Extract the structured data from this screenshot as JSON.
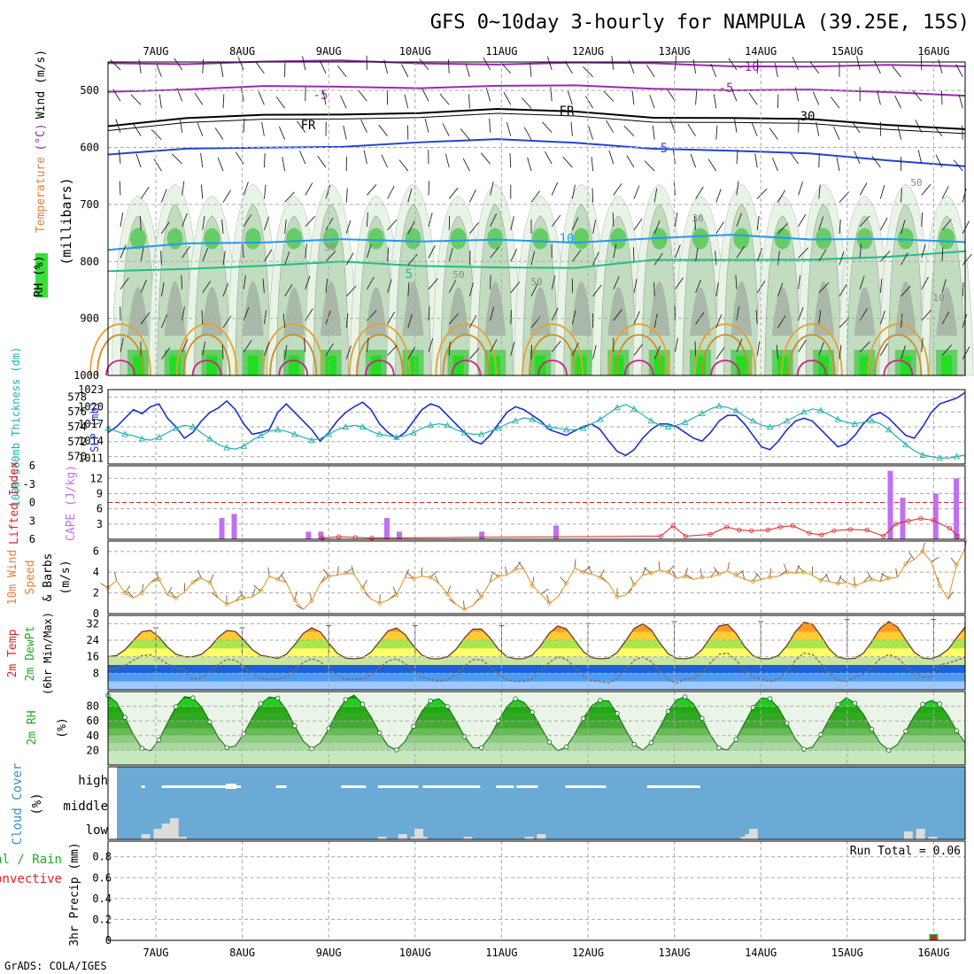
{
  "title": "GFS 0~10day 3-hourly for NAMPULA (39.25E, 15S)",
  "footer": "GrADS: COLA/IGES",
  "dates": [
    "7AUG",
    "8AUG",
    "9AUG",
    "10AUG",
    "11AUG",
    "12AUG",
    "13AUG",
    "14AUG",
    "15AUG",
    "16AUG"
  ],
  "colors": {
    "rh_light": "#e8f4e6",
    "rh_mid": "#c2dcc0",
    "rh_grey": "#a9b8a8",
    "rh_green": "#66cc66",
    "rh_bright": "#22dd22",
    "slp": "#1c30c8",
    "thickness": "#22b0b0",
    "cape": "#c070f0",
    "lifted": "#dd2222",
    "wind": "#e09a30",
    "barb": "#7a5a3a",
    "cloud_bg": "#6aaad4",
    "cloud_bar": "#dcdcdc",
    "precip_total": "#22aa22",
    "precip_conv": "#dd2222"
  },
  "chart_data": [
    {
      "type": "area",
      "panel": "upper-air",
      "ylabel_parts": [
        "RH (%)",
        "Temperature",
        "(°C)",
        "Wind (m/s)"
      ],
      "y_axis_label": "(millibars)",
      "yticks": [
        500,
        600,
        700,
        800,
        900,
        1000
      ],
      "ylim": [
        1000,
        450
      ],
      "contour_labels": [
        "-10",
        "-5",
        "-5",
        "FR",
        "FR",
        "5",
        "10",
        "5",
        "30",
        "30",
        "30",
        "50",
        "50",
        "50",
        "10"
      ],
      "isotherms": [
        {
          "label": "-10",
          "color": "#9a2ab0",
          "p": [
            452,
            451,
            450,
            450,
            451,
            452,
            453,
            454,
            455,
            457,
            458,
            458
          ]
        },
        {
          "label": "-5",
          "color": "#9a2ab0",
          "p": [
            500,
            497,
            495,
            494,
            493,
            492,
            494,
            496,
            497,
            500,
            505,
            507
          ]
        },
        {
          "label": "FR",
          "color": "#000000",
          "p": [
            560,
            550,
            545,
            540,
            538,
            535,
            538,
            545,
            548,
            553,
            560,
            565
          ]
        },
        {
          "label": "5",
          "color": "#2244cc",
          "p": [
            612,
            605,
            600,
            596,
            592,
            588,
            590,
            600,
            608,
            612,
            620,
            632
          ]
        },
        {
          "label": "10",
          "color": "#2299ee",
          "p": [
            782,
            770,
            764,
            760,
            768,
            762,
            764,
            760,
            756,
            760,
            758,
            768
          ]
        },
        {
          "label": "5",
          "color": "#22bb88",
          "p": [
            820,
            812,
            805,
            802,
            810,
            808,
            810,
            800,
            798,
            794,
            792,
            785
          ]
        }
      ]
    },
    {
      "type": "line",
      "panel": "slp-thickness",
      "ylabel_left": "1000-500mb Thickness (dm)",
      "ylabel_right": "SLP (mb)",
      "left_ticks": [
        570,
        572,
        574,
        576,
        578
      ],
      "right_ticks": [
        1011,
        1014,
        1017,
        1020,
        1023
      ],
      "series": [
        {
          "name": "SLP (mb)",
          "color": "#1c30c8",
          "values": [
            1015.5,
            1016.5,
            1018.0,
            1019.5,
            1018.8,
            1020.0,
            1020.5,
            1018.0,
            1016.5,
            1014.5,
            1015.5,
            1017.5,
            1019.0,
            1019.8,
            1021.0,
            1019.5,
            1017.0,
            1015.2,
            1015.5,
            1016.0,
            1019.0,
            1020.5,
            1019.0,
            1017.5,
            1016.0,
            1014.0,
            1015.5,
            1017.5,
            1019.0,
            1020.0,
            1020.8,
            1019.5,
            1017.0,
            1015.5,
            1014.5,
            1015.5,
            1017.5,
            1019.5,
            1020.5,
            1020.0,
            1018.5,
            1017.0,
            1015.5,
            1014.0,
            1013.5,
            1015.0,
            1017.0,
            1019.0,
            1020.0,
            1019.5,
            1018.5,
            1017.5,
            1016.0,
            1015.5,
            1015.0,
            1015.8,
            1016.5,
            1017.0,
            1016.0,
            1014.0,
            1012.2,
            1011.5,
            1012.5,
            1014.5,
            1016.0,
            1017.0,
            1017.0,
            1016.5,
            1015.5,
            1014.5,
            1014.0,
            1015.5,
            1017.5,
            1018.5,
            1018.5,
            1017.0,
            1015.0,
            1013.0,
            1012.5,
            1014.0,
            1016.0,
            1017.5,
            1018.0,
            1017.5,
            1016.0,
            1014.5,
            1013.0,
            1013.5,
            1015.0,
            1017.0,
            1018.5,
            1019.0,
            1018.0,
            1016.5,
            1015.0,
            1014.5,
            1016.5,
            1019.0,
            1020.5,
            1021.0,
            1021.5,
            1022.5
          ]
        },
        {
          "name": "1000-500mb Thickness (dm)",
          "color": "#22b0b0",
          "values": [
            573.8,
            573.4,
            573.0,
            572.8,
            572.4,
            572.2,
            572.6,
            573.2,
            573.8,
            574.2,
            574.0,
            573.2,
            572.4,
            571.6,
            571.2,
            571.0,
            571.4,
            572.2,
            572.8,
            573.4,
            573.6,
            573.4,
            573.0,
            572.6,
            572.2,
            572.4,
            573.0,
            573.6,
            574.0,
            574.2,
            574.0,
            573.4,
            573.0,
            572.8,
            572.6,
            572.8,
            573.2,
            573.8,
            574.2,
            574.4,
            574.2,
            573.6,
            573.2,
            573.0,
            573.0,
            573.4,
            573.8,
            574.4,
            574.8,
            575.2,
            575.0,
            574.4,
            574.0,
            573.8,
            573.6,
            573.6,
            573.8,
            574.4,
            575.0,
            575.8,
            576.6,
            577.0,
            576.4,
            575.6,
            574.8,
            574.2,
            574.0,
            574.2,
            574.6,
            575.2,
            575.8,
            576.4,
            576.8,
            576.6,
            576.2,
            575.4,
            574.8,
            574.2,
            574.0,
            574.2,
            574.8,
            575.4,
            576.0,
            576.4,
            576.2,
            575.6,
            575.0,
            574.6,
            574.4,
            574.6,
            574.8,
            574.4,
            573.6,
            572.6,
            571.6,
            570.8,
            570.2,
            570.0,
            569.8,
            569.8,
            570.0,
            570.2
          ]
        }
      ]
    },
    {
      "type": "bar",
      "panel": "cape-lifted",
      "ylabel_left": "Lifted Index",
      "ylabel_right": "CAPE (J/kg)",
      "lifted_ticks": [
        -6,
        -3,
        0,
        3,
        6
      ],
      "cape_ticks": [
        3,
        6,
        9,
        12
      ],
      "cape_bars": [
        {
          "t": 1.35,
          "v": 4.2
        },
        {
          "t": 1.5,
          "v": 5.0
        },
        {
          "t": 2.4,
          "v": 1.5
        },
        {
          "t": 2.55,
          "v": 1.5
        },
        {
          "t": 3.35,
          "v": 4.2
        },
        {
          "t": 3.5,
          "v": 1.5
        },
        {
          "t": 4.5,
          "v": 1.5
        },
        {
          "t": 5.4,
          "v": 2.7
        },
        {
          "t": 9.45,
          "v": 13.5
        },
        {
          "t": 9.6,
          "v": 8.2
        },
        {
          "t": 10.0,
          "v": 9.0
        },
        {
          "t": 10.25,
          "v": 12.0
        }
      ],
      "lifted_index": [
        {
          "t": 2.6,
          "v": 5.8
        },
        {
          "t": 2.8,
          "v": 5.6
        },
        {
          "t": 3.0,
          "v": 5.7
        },
        {
          "t": 3.2,
          "v": 5.8
        },
        {
          "t": 6.7,
          "v": 5.5
        },
        {
          "t": 6.85,
          "v": 3.8
        },
        {
          "t": 7.0,
          "v": 5.5
        },
        {
          "t": 7.3,
          "v": 5.2
        },
        {
          "t": 7.5,
          "v": 4.0
        },
        {
          "t": 7.65,
          "v": 4.5
        },
        {
          "t": 7.8,
          "v": 4.6
        },
        {
          "t": 8.0,
          "v": 4.5
        },
        {
          "t": 8.15,
          "v": 4.0
        },
        {
          "t": 8.3,
          "v": 3.8
        },
        {
          "t": 8.5,
          "v": 5.0
        },
        {
          "t": 8.65,
          "v": 5.3
        },
        {
          "t": 8.8,
          "v": 4.6
        },
        {
          "t": 9.0,
          "v": 4.4
        },
        {
          "t": 9.2,
          "v": 4.5
        },
        {
          "t": 9.4,
          "v": 5.5
        },
        {
          "t": 9.55,
          "v": 3.5
        },
        {
          "t": 9.7,
          "v": 3.0
        },
        {
          "t": 9.85,
          "v": 2.6
        },
        {
          "t": 10.0,
          "v": 2.9
        },
        {
          "t": 10.2,
          "v": 4.2
        },
        {
          "t": 10.3,
          "v": 5.5
        }
      ]
    },
    {
      "type": "line",
      "panel": "wind10m",
      "ylabel": "10m Wind Speed & Barbs (m/s)",
      "ylabel_lines": [
        "10m Wind",
        "Speed",
        "& Barbs",
        "(m/s)"
      ],
      "yticks": [
        0,
        2,
        4,
        6
      ],
      "ylim": [
        0,
        7
      ],
      "series": [
        {
          "name": "10m wind speed",
          "color": "#e09a30",
          "values": [
            2.5,
            3.2,
            2.0,
            1.5,
            2.0,
            3.0,
            3.3,
            1.8,
            1.5,
            2.1,
            3.0,
            3.4,
            3.0,
            1.5,
            0.9,
            1.2,
            1.5,
            1.6,
            2.2,
            3.6,
            3.3,
            3.0,
            1.3,
            0.4,
            1.2,
            2.9,
            3.6,
            3.7,
            3.9,
            3.8,
            2.5,
            1.4,
            1.0,
            1.3,
            1.8,
            3.5,
            3.4,
            3.6,
            3.5,
            2.9,
            1.9,
            0.9,
            0.4,
            0.8,
            1.6,
            3.0,
            3.6,
            3.7,
            4.3,
            4.3,
            2.7,
            1.9,
            1.0,
            1.6,
            2.9,
            4.4,
            4.0,
            3.8,
            3.5,
            2.9,
            1.6,
            1.8,
            2.8,
            3.7,
            3.9,
            4.2,
            4.0,
            3.4,
            3.6,
            3.3,
            3.5,
            3.5,
            3.8,
            4.1,
            3.7,
            3.3,
            3.1,
            3.3,
            3.5,
            3.6,
            4.0,
            3.9,
            4.0,
            3.7,
            3.2,
            3.1,
            2.9,
            3.0,
            2.7,
            3.0,
            3.3,
            3.1,
            3.4,
            3.5,
            4.8,
            5.2,
            6.0,
            5.0,
            2.7,
            1.4,
            4.7,
            6.3
          ]
        }
      ]
    },
    {
      "type": "area",
      "panel": "temp2m",
      "ylabel": "2m Temp 2m DewPt (6hr Min/Max)",
      "ylabel_lines": [
        "2m Temp",
        "2m DewPt",
        "(6hr Min/Max)"
      ],
      "yticks": [
        8,
        16,
        24,
        32
      ],
      "ylim": [
        0,
        36
      ],
      "series": [
        {
          "name": "2m Temp",
          "color": "#7a4a2a",
          "daily": [
            [
              16,
              29
            ],
            [
              16,
              29
            ],
            [
              15,
              30
            ],
            [
              15,
              30
            ],
            [
              15,
              30
            ],
            [
              15,
              31
            ],
            [
              15,
              32
            ],
            [
              15,
              32
            ],
            [
              15,
              33
            ],
            [
              15,
              33
            ],
            [
              16,
              32
            ]
          ]
        },
        {
          "name": "2m DewPt",
          "color": "#8a6a5a",
          "daily": [
            [
              10,
              17
            ],
            [
              5,
              15
            ],
            [
              5,
              15
            ],
            [
              5,
              15
            ],
            [
              4,
              15
            ],
            [
              4,
              16
            ],
            [
              3,
              16
            ],
            [
              5,
              18
            ],
            [
              4,
              18
            ],
            [
              6,
              17
            ],
            [
              12,
              16
            ]
          ]
        }
      ]
    },
    {
      "type": "area",
      "panel": "rh2m",
      "ylabel_lines": [
        "2m RH",
        "(%)"
      ],
      "yticks": [
        20,
        40,
        60,
        80
      ],
      "ylim": [
        0,
        100
      ],
      "daily_min_max": [
        [
          18,
          95
        ],
        [
          22,
          93
        ],
        [
          22,
          95
        ],
        [
          20,
          90
        ],
        [
          21,
          91
        ],
        [
          19,
          88
        ],
        [
          20,
          93
        ],
        [
          19,
          93
        ],
        [
          20,
          92
        ],
        [
          20,
          88
        ],
        [
          25,
          90
        ]
      ]
    },
    {
      "type": "bar",
      "panel": "cloud",
      "ylabel": "Cloud Cover (%)",
      "ylabel_lines": [
        "Cloud Cover",
        "(%)"
      ],
      "levels": [
        "high",
        "middle",
        "low"
      ],
      "high": [
        [
          0.6,
          0.1
        ],
        [
          1.1,
          0.6
        ],
        [
          1.6,
          0.5
        ],
        [
          2.0,
          1.2
        ],
        [
          2.4,
          0.5
        ],
        [
          3.9,
          0.3
        ],
        [
          5.5,
          0.7
        ],
        [
          6.4,
          0.7
        ],
        [
          6.7,
          0.8
        ],
        [
          7.5,
          1.0
        ],
        [
          8.3,
          0.7
        ],
        [
          9.3,
          0.5
        ],
        [
          9.8,
          0.6
        ],
        [
          11.0,
          1.0
        ],
        [
          11.3,
          0.8
        ],
        [
          13.0,
          1.5
        ]
      ],
      "low": [
        [
          0.6,
          20
        ],
        [
          0.9,
          40
        ],
        [
          1.1,
          60
        ],
        [
          1.3,
          80
        ],
        [
          1.5,
          10
        ],
        [
          6.4,
          10
        ],
        [
          6.9,
          20
        ],
        [
          7.2,
          10
        ],
        [
          7.3,
          40
        ],
        [
          7.4,
          10
        ],
        [
          8.5,
          10
        ],
        [
          10.0,
          10
        ],
        [
          10.3,
          20
        ],
        [
          15.3,
          10
        ],
        [
          15.4,
          20
        ],
        [
          15.5,
          40
        ],
        [
          19.3,
          30
        ],
        [
          19.6,
          40
        ],
        [
          19.9,
          10
        ]
      ]
    },
    {
      "type": "bar",
      "panel": "precip",
      "ylabel": "3hr Precip (mm)",
      "ylabel_left_lines": [
        "tal / Rain",
        "Convective"
      ],
      "yticks": [
        0,
        0.2,
        0.4,
        0.6,
        0.8
      ],
      "ylim": [
        0,
        0.95
      ],
      "run_total": "Run Total = 0.06",
      "bars": [
        {
          "t": 9.97,
          "total": 0.06,
          "convective": 0.05
        }
      ]
    }
  ]
}
